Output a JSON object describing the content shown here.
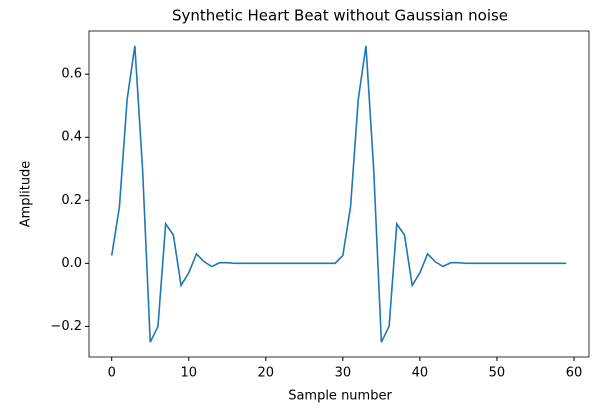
{
  "chart_data": {
    "type": "line",
    "title": "Synthetic Heart Beat without Gaussian noise",
    "x_label": "Sample number",
    "y_label": "Amplitude",
    "x": [
      0,
      1,
      2,
      3,
      4,
      5,
      6,
      7,
      8,
      9,
      10,
      11,
      12,
      13,
      14,
      15,
      16,
      17,
      18,
      19,
      20,
      21,
      22,
      23,
      24,
      25,
      26,
      27,
      28,
      29,
      30,
      31,
      32,
      33,
      34,
      35,
      36,
      37,
      38,
      39,
      40,
      41,
      42,
      43,
      44,
      45,
      46,
      47,
      48,
      49,
      50,
      51,
      52,
      53,
      54,
      55,
      56,
      57,
      58,
      59
    ],
    "series": [
      {
        "name": "heart beat",
        "color": "#1f77b4",
        "values": [
          0.025,
          0.18,
          0.52,
          0.69,
          0.3,
          -0.25,
          -0.2,
          0.125,
          0.09,
          -0.07,
          -0.03,
          0.03,
          0.005,
          -0.01,
          0.002,
          0.002,
          0,
          0,
          0,
          0,
          0,
          0,
          0,
          0,
          0,
          0,
          0,
          0,
          0,
          0,
          0.025,
          0.18,
          0.52,
          0.69,
          0.3,
          -0.25,
          -0.2,
          0.125,
          0.09,
          -0.07,
          -0.03,
          0.03,
          0.005,
          -0.01,
          0.002,
          0.002,
          0,
          0,
          0,
          0,
          0,
          0,
          0,
          0,
          0,
          0,
          0,
          0,
          0,
          0
        ]
      }
    ],
    "xlim": [
      -2.95,
      61.95
    ],
    "xticks": [
      0,
      10,
      20,
      30,
      40,
      50,
      60
    ],
    "ylim": [
      -0.297,
      0.737
    ],
    "yticks": [
      {
        "value": -0.2,
        "label": "−0.2"
      },
      {
        "value": 0,
        "label": "0.0"
      },
      0.2,
      0.4,
      0.6
    ],
    "grid": false
  }
}
